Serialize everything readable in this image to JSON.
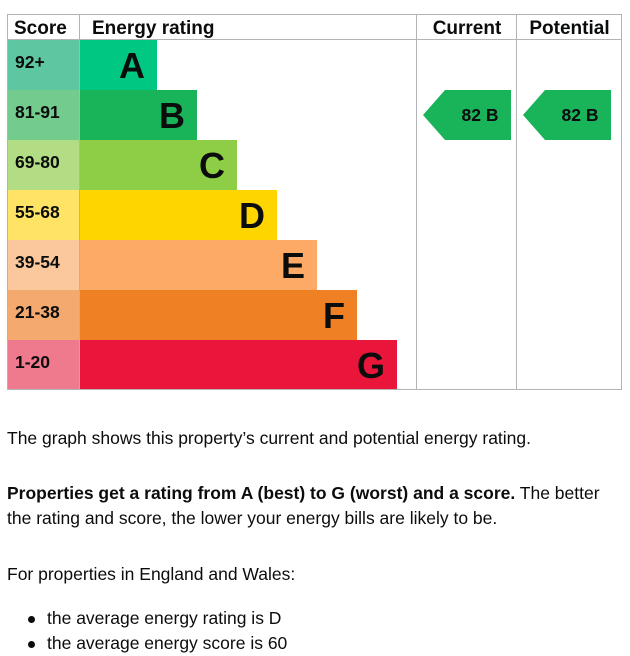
{
  "chart_data": {
    "type": "bar",
    "headers": {
      "score": "Score",
      "rating": "Energy rating",
      "current": "Current",
      "potential": "Potential"
    },
    "bands": [
      {
        "band": "A",
        "range": "92+",
        "color": "#00c781",
        "label_bg": "#5ec7a2"
      },
      {
        "band": "B",
        "range": "81-91",
        "color": "#19b459",
        "label_bg": "#73cb8d"
      },
      {
        "band": "C",
        "range": "69-80",
        "color": "#8dce46",
        "label_bg": "#b2dd84"
      },
      {
        "band": "D",
        "range": "55-68",
        "color": "#ffd500",
        "label_bg": "#fee364"
      },
      {
        "band": "E",
        "range": "39-54",
        "color": "#fcaa65",
        "label_bg": "#fbc89d"
      },
      {
        "band": "F",
        "range": "21-38",
        "color": "#ef8023",
        "label_bg": "#f4aa6f"
      },
      {
        "band": "G",
        "range": "1-20",
        "color": "#e9153b",
        "label_bg": "#f07a8d"
      }
    ],
    "current": {
      "score": 82,
      "band": "B",
      "label": "82  B",
      "color": "#19b459"
    },
    "potential": {
      "score": 82,
      "band": "B",
      "label": "82  B",
      "color": "#19b459"
    }
  },
  "text": {
    "intro": "The graph shows this property’s current and potential energy rating.",
    "rating_bold": "Properties get a rating from A (best) to G (worst) and a score.",
    "rating_rest": " The better the rating and score, the lower your energy bills are likely to be.",
    "region": "For properties in England and Wales:",
    "bullets": [
      "the average energy rating is D",
      "the average energy score is 60"
    ]
  }
}
